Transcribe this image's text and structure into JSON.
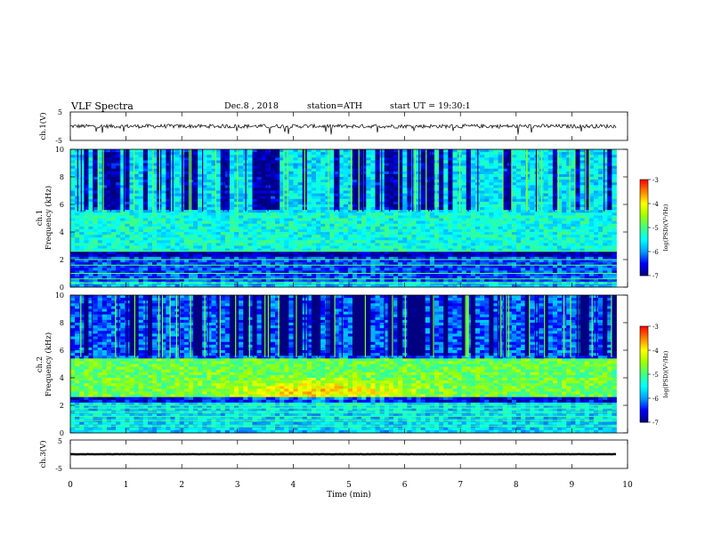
{
  "header": {
    "title": "VLF Spectra",
    "date": "Dec.8 , 2018",
    "station": "station=ATH",
    "start": "start UT =   19:30:1"
  },
  "chart_data": [
    {
      "type": "line",
      "panel": "ch1-waveform",
      "ylabel": "ch.1(V)",
      "xlim": [
        0,
        10
      ],
      "ylim": [
        -5,
        5
      ],
      "yticks": [
        "5",
        "-5"
      ],
      "data_end_min": 9.8,
      "baseline_V": 0,
      "description_values": "noisy waveform near 0 V with sporadic spikes reaching about -2 V",
      "color": "#000000"
    },
    {
      "type": "heatmap",
      "panel": "ch1-spectrogram",
      "ylabel": "ch.1\nFrequency (kHz)",
      "xlim": [
        0,
        10
      ],
      "ylim": [
        0,
        10
      ],
      "yticks": [
        "0",
        "2",
        "4",
        "6",
        "8",
        "10"
      ],
      "data_end_min": 9.8,
      "colorbar": {
        "label": "log(PSD)(V²/Hz)",
        "range": [
          -7,
          -3
        ],
        "ticks": [
          "-3",
          "-4",
          "-5",
          "-6",
          "-7"
        ]
      },
      "bands": [
        {
          "f_low": 0,
          "f_high": 0.4,
          "level": -5.8
        },
        {
          "f_low": 0.4,
          "f_high": 2.3,
          "level": -6.3
        },
        {
          "f_low": 2.3,
          "f_high": 2.7,
          "level": -6.9
        },
        {
          "f_low": 2.7,
          "f_high": 5.5,
          "level": -5.4
        },
        {
          "f_low": 5.5,
          "f_high": 10,
          "level": -5.6
        }
      ]
    },
    {
      "type": "heatmap",
      "panel": "ch2-spectrogram",
      "ylabel": "ch.2\nFrequency (kHz)",
      "xlim": [
        0,
        10
      ],
      "ylim": [
        0,
        10
      ],
      "yticks": [
        "0",
        "2",
        "4",
        "6",
        "8",
        "10"
      ],
      "data_end_min": 9.8,
      "colorbar": {
        "label": "log(PSD)(V²/Hz)",
        "range": [
          -7,
          -3
        ],
        "ticks": [
          "-3",
          "-4",
          "-5",
          "-6",
          "-7"
        ]
      },
      "bands": [
        {
          "f_low": 0,
          "f_high": 2.1,
          "level": -5.7
        },
        {
          "f_low": 2.1,
          "f_high": 2.6,
          "level": -6.6
        },
        {
          "f_low": 2.6,
          "f_high": 5.5,
          "level": -4.8
        },
        {
          "f_low": 5.5,
          "f_high": 10,
          "level": -6.2
        }
      ],
      "peak": {
        "time_min": 4.5,
        "f_khz": 3.0,
        "level": -4.2
      }
    },
    {
      "type": "line",
      "panel": "ch3-waveform",
      "ylabel": "ch.3(V)",
      "xlabel": "Time (min)",
      "xlim": [
        0,
        10
      ],
      "ylim": [
        -5,
        5
      ],
      "yticks": [
        "5",
        "-5"
      ],
      "xticks": [
        "0",
        "1",
        "2",
        "3",
        "4",
        "5",
        "6",
        "7",
        "8",
        "9",
        "10"
      ],
      "data_end_min": 9.8,
      "baseline_V": 0,
      "color": "#000000"
    }
  ],
  "colormap": [
    "#000080",
    "#0000ff",
    "#00a0ff",
    "#00ffff",
    "#40ff80",
    "#a0ff00",
    "#ffff00",
    "#ff8000",
    "#ff0000",
    "#ffffff"
  ]
}
